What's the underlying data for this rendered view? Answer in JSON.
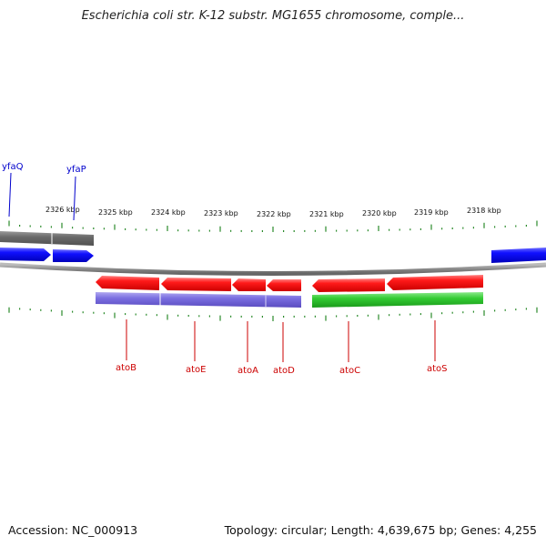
{
  "header": {
    "title": "Escherichia coli str. K-12 substr. MG1655 chromosome, comple..."
  },
  "footer": {
    "accession": "Accession: NC_000913",
    "summary": "Topology: circular; Length: 4,639,675 bp; Genes: 4,255"
  },
  "colors": {
    "gene_label_red": "#cc0000",
    "gene_label_blue": "#0000cc",
    "cds_red": "#ee0000",
    "gene_blue": "#0000ee",
    "gene_purple": "#6b5fd0",
    "gene_green": "#22bb22",
    "gene_gray": "#666666",
    "tick_green": "#2a8a2a"
  },
  "scale": {
    "unit": "kbp",
    "labels": [
      "2326 kbp",
      "2325 kbp",
      "2324 kbp",
      "2323 kbp",
      "2322 kbp",
      "2321 kbp",
      "2320 kbp",
      "2319 kbp",
      "2318 kbp"
    ]
  },
  "genes": [
    {
      "name": "yfaQ",
      "strand": "blue"
    },
    {
      "name": "yfaP",
      "strand": "blue"
    },
    {
      "name": "atoB",
      "strand": "red"
    },
    {
      "name": "atoE",
      "strand": "red"
    },
    {
      "name": "atoA",
      "strand": "red"
    },
    {
      "name": "atoD",
      "strand": "red"
    },
    {
      "name": "atoC",
      "strand": "red"
    },
    {
      "name": "atoS",
      "strand": "red"
    }
  ]
}
